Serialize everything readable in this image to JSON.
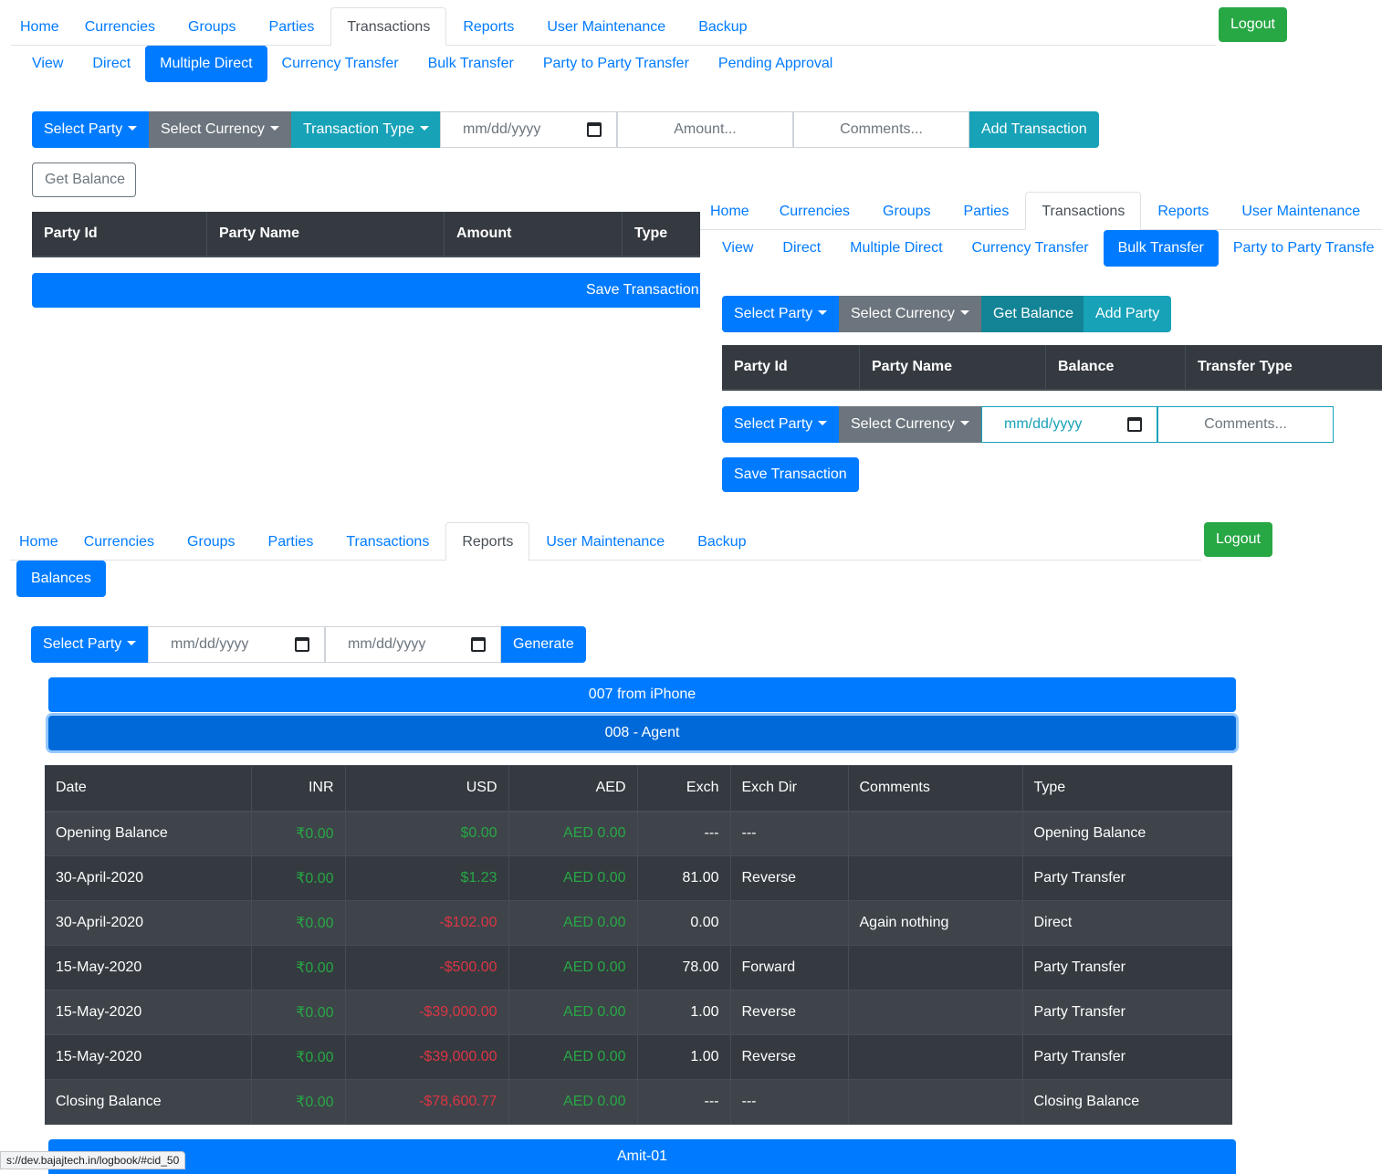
{
  "panel1": {
    "nav": [
      "Home",
      "Currencies",
      "Groups",
      "Parties",
      "Transactions",
      "Reports",
      "User Maintenance",
      "Backup"
    ],
    "nav_active": "Transactions",
    "logout": "Logout",
    "subnav": [
      "View",
      "Direct",
      "Multiple Direct",
      "Currency Transfer",
      "Bulk Transfer",
      "Party to Party Transfer",
      "Pending Approval"
    ],
    "subnav_active": "Multiple Direct",
    "select_party": "Select Party",
    "select_currency": "Select Currency",
    "transaction_type": "Transaction Type",
    "date_placeholder": "mm/dd/yyyy",
    "amount_placeholder": "Amount...",
    "comments_placeholder": "Comments...",
    "add_transaction": "Add Transaction",
    "get_balance": "Get Balance",
    "table_headers": [
      "Party Id",
      "Party Name",
      "Amount",
      "Type"
    ],
    "save_transaction": "Save Transaction"
  },
  "panel2": {
    "nav": [
      "Home",
      "Currencies",
      "Groups",
      "Parties",
      "Transactions",
      "Reports",
      "User Maintenance"
    ],
    "nav_active": "Transactions",
    "subnav": [
      "View",
      "Direct",
      "Multiple Direct",
      "Currency Transfer",
      "Bulk Transfer",
      "Party to Party Transfe"
    ],
    "subnav_active": "Bulk Transfer",
    "select_party": "Select Party",
    "select_currency": "Select Currency",
    "get_balance": "Get Balance",
    "add_party": "Add Party",
    "table_headers": [
      "Party Id",
      "Party Name",
      "Balance",
      "Transfer Type"
    ],
    "select_party_2": "Select Party",
    "select_currency_2": "Select Currency",
    "date_placeholder": "mm/dd/yyyy",
    "comments_placeholder": "Comments...",
    "save_transaction": "Save Transaction"
  },
  "panel3": {
    "nav": [
      "Home",
      "Currencies",
      "Groups",
      "Parties",
      "Transactions",
      "Reports",
      "User Maintenance",
      "Backup"
    ],
    "nav_active": "Reports",
    "logout": "Logout",
    "subnav_balances": "Balances",
    "select_party": "Select Party",
    "from_date_placeholder": "mm/dd/yyyy",
    "to_date_placeholder": "mm/dd/yyyy",
    "generate": "Generate",
    "accordion": [
      "007 from iPhone",
      "008 - Agent",
      "Amit-01"
    ],
    "report_headers": [
      "Date",
      "INR",
      "USD",
      "AED",
      "Exch",
      "Exch Dir",
      "Comments",
      "Type"
    ],
    "report_rows": [
      {
        "date": "Opening Balance",
        "inr": "₹0.00",
        "usd": "$0.00",
        "usd_neg": false,
        "aed": "AED 0.00",
        "exch": "---",
        "dir": "---",
        "comments": "",
        "type": "Opening Balance"
      },
      {
        "date": "30-April-2020",
        "inr": "₹0.00",
        "usd": "$1.23",
        "usd_neg": false,
        "aed": "AED 0.00",
        "exch": "81.00",
        "dir": "Reverse",
        "comments": "",
        "type": "Party Transfer"
      },
      {
        "date": "30-April-2020",
        "inr": "₹0.00",
        "usd": "-$102.00",
        "usd_neg": true,
        "aed": "AED 0.00",
        "exch": "0.00",
        "dir": "",
        "comments": "Again nothing",
        "type": "Direct"
      },
      {
        "date": "15-May-2020",
        "inr": "₹0.00",
        "usd": "-$500.00",
        "usd_neg": true,
        "aed": "AED 0.00",
        "exch": "78.00",
        "dir": "Forward",
        "comments": "",
        "type": "Party Transfer"
      },
      {
        "date": "15-May-2020",
        "inr": "₹0.00",
        "usd": "-$39,000.00",
        "usd_neg": true,
        "aed": "AED 0.00",
        "exch": "1.00",
        "dir": "Reverse",
        "comments": "",
        "type": "Party Transfer"
      },
      {
        "date": "15-May-2020",
        "inr": "₹0.00",
        "usd": "-$39,000.00",
        "usd_neg": true,
        "aed": "AED 0.00",
        "exch": "1.00",
        "dir": "Reverse",
        "comments": "",
        "type": "Party Transfer"
      },
      {
        "date": "Closing Balance",
        "inr": "₹0.00",
        "usd": "-$78,600.77",
        "usd_neg": true,
        "aed": "AED 0.00",
        "exch": "---",
        "dir": "---",
        "comments": "",
        "type": "Closing Balance"
      }
    ]
  },
  "statusbar": "s://dev.bajajtech.in/logbook/#cid_50",
  "colors": {
    "primary": "#007bff",
    "secondary": "#6c757d",
    "info": "#17a2b8",
    "success": "#28a745",
    "danger": "#dc3545",
    "dark": "#343a40"
  }
}
